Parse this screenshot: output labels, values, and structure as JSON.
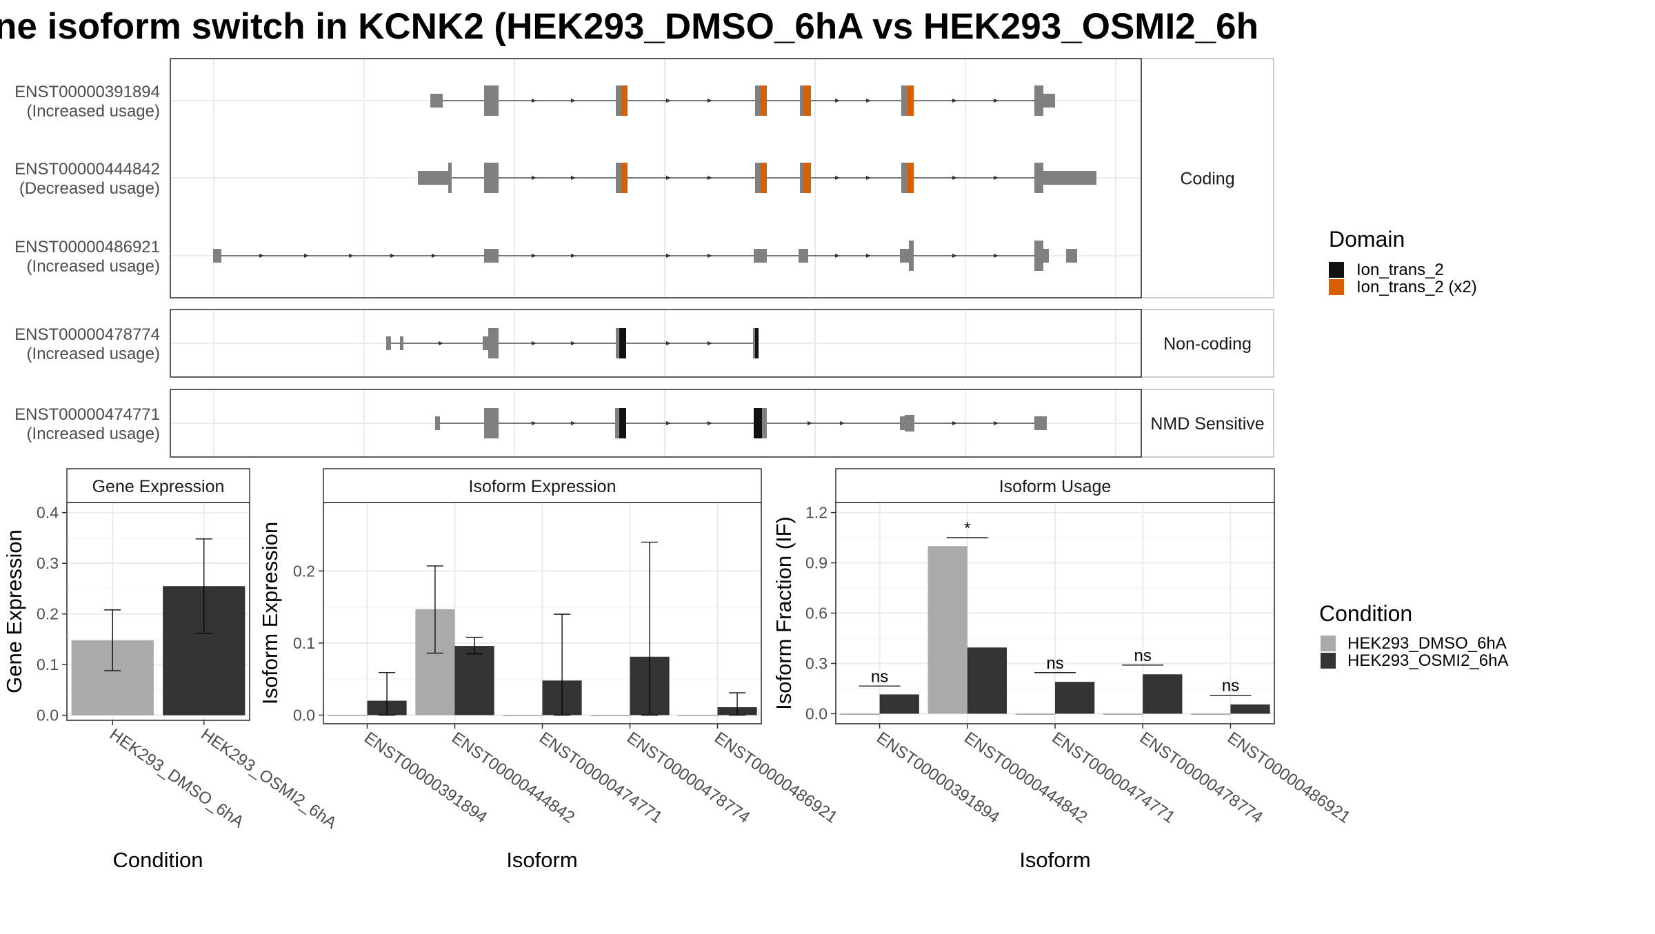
{
  "title": "ne isoform switch in KCNK2 (HEK293_DMSO_6hA vs HEK293_OSMI2_6h",
  "colors": {
    "exon": "#808080",
    "domain_single": "#111111",
    "domain_double": "#d95f02",
    "dmso": "#aaaaaa",
    "osmi": "#333333",
    "grid": "#ebebeb",
    "panel_border": "#333333",
    "strip_border": "#bbbbbb"
  },
  "structure": {
    "groups": [
      {
        "label": "Coding",
        "transcripts": [
          {
            "id": "ENST00000391894",
            "usage": "(Increased usage)"
          },
          {
            "id": "ENST00000444842",
            "usage": "(Decreased usage)"
          },
          {
            "id": "ENST00000486921",
            "usage": "(Increased usage)"
          }
        ]
      },
      {
        "label": "Non-coding",
        "transcripts": [
          {
            "id": "ENST00000478774",
            "usage": "(Increased usage)"
          }
        ]
      },
      {
        "label": "NMD Sensitive",
        "transcripts": [
          {
            "id": "ENST00000474771",
            "usage": "(Increased usage)"
          }
        ]
      }
    ],
    "domain_legend": {
      "title": "Domain",
      "items": [
        {
          "label": "Ion_trans_2",
          "color": "#111111"
        },
        {
          "label": "Ion_trans_2 (x2)",
          "color": "#d95f02"
        }
      ]
    }
  },
  "chart_data": [
    {
      "type": "bar",
      "panel": "Gene Expression",
      "xlabel": "Condition",
      "ylabel": "Gene Expression",
      "categories": [
        "HEK293_DMSO_6hA",
        "HEK293_OSMI2_6hA"
      ],
      "values": [
        0.148,
        0.255
      ],
      "error_low": [
        0.088,
        0.162
      ],
      "error_high": [
        0.208,
        0.348
      ],
      "ylim": [
        -0.01,
        0.42
      ],
      "yticks": [
        0.0,
        0.1,
        0.2,
        0.3,
        0.4
      ],
      "ytick_labels": [
        "0.0",
        "0.1",
        "0.2",
        "0.3",
        "0.4"
      ]
    },
    {
      "type": "bar",
      "panel": "Isoform Expression",
      "xlabel": "Isoform",
      "ylabel": "Isoform Expression",
      "categories": [
        "ENST00000391894",
        "ENST00000444842",
        "ENST00000474771",
        "ENST00000478774",
        "ENST00000486921"
      ],
      "series": [
        {
          "name": "HEK293_DMSO_6hA",
          "values": [
            0.0,
            0.147,
            0.0,
            0.0,
            0.0
          ],
          "error_low": [
            null,
            0.086,
            null,
            null,
            null
          ],
          "error_high": [
            null,
            0.207,
            null,
            null,
            null
          ]
        },
        {
          "name": "HEK293_OSMI2_6hA",
          "values": [
            0.02,
            0.096,
            0.048,
            0.081,
            0.011
          ],
          "error_low": [
            0.0,
            0.085,
            0.0,
            0.0,
            0.0
          ],
          "error_high": [
            0.059,
            0.108,
            0.14,
            0.24,
            0.031
          ]
        }
      ],
      "ylim": [
        -0.012,
        0.295
      ],
      "yticks": [
        0.0,
        0.1,
        0.2
      ],
      "ytick_labels": [
        "0.0",
        "0.1",
        "0.2"
      ]
    },
    {
      "type": "bar",
      "panel": "Isoform Usage",
      "xlabel": "Isoform",
      "ylabel": "Isoform Fraction (IF)",
      "categories": [
        "ENST00000391894",
        "ENST00000444842",
        "ENST00000474771",
        "ENST00000478774",
        "ENST00000486921"
      ],
      "series": [
        {
          "name": "HEK293_DMSO_6hA",
          "values": [
            0.0,
            1.0,
            0.0,
            0.0,
            0.0
          ]
        },
        {
          "name": "HEK293_OSMI2_6hA",
          "values": [
            0.115,
            0.395,
            0.19,
            0.235,
            0.055
          ]
        }
      ],
      "significance": [
        {
          "label": "ns",
          "y": 0.165
        },
        {
          "label": "*",
          "y": 1.05
        },
        {
          "label": "ns",
          "y": 0.245
        },
        {
          "label": "ns",
          "y": 0.29
        },
        {
          "label": "ns",
          "y": 0.11
        }
      ],
      "ylim": [
        -0.06,
        1.26
      ],
      "yticks": [
        0.0,
        0.3,
        0.6,
        0.9,
        1.2
      ],
      "ytick_labels": [
        "0.0",
        "0.3",
        "0.6",
        "0.9",
        "1.2"
      ]
    }
  ],
  "condition_legend": {
    "title": "Condition",
    "items": [
      {
        "label": "HEK293_DMSO_6hA",
        "color": "#aaaaaa"
      },
      {
        "label": "HEK293_OSMI2_6hA",
        "color": "#333333"
      }
    ]
  }
}
